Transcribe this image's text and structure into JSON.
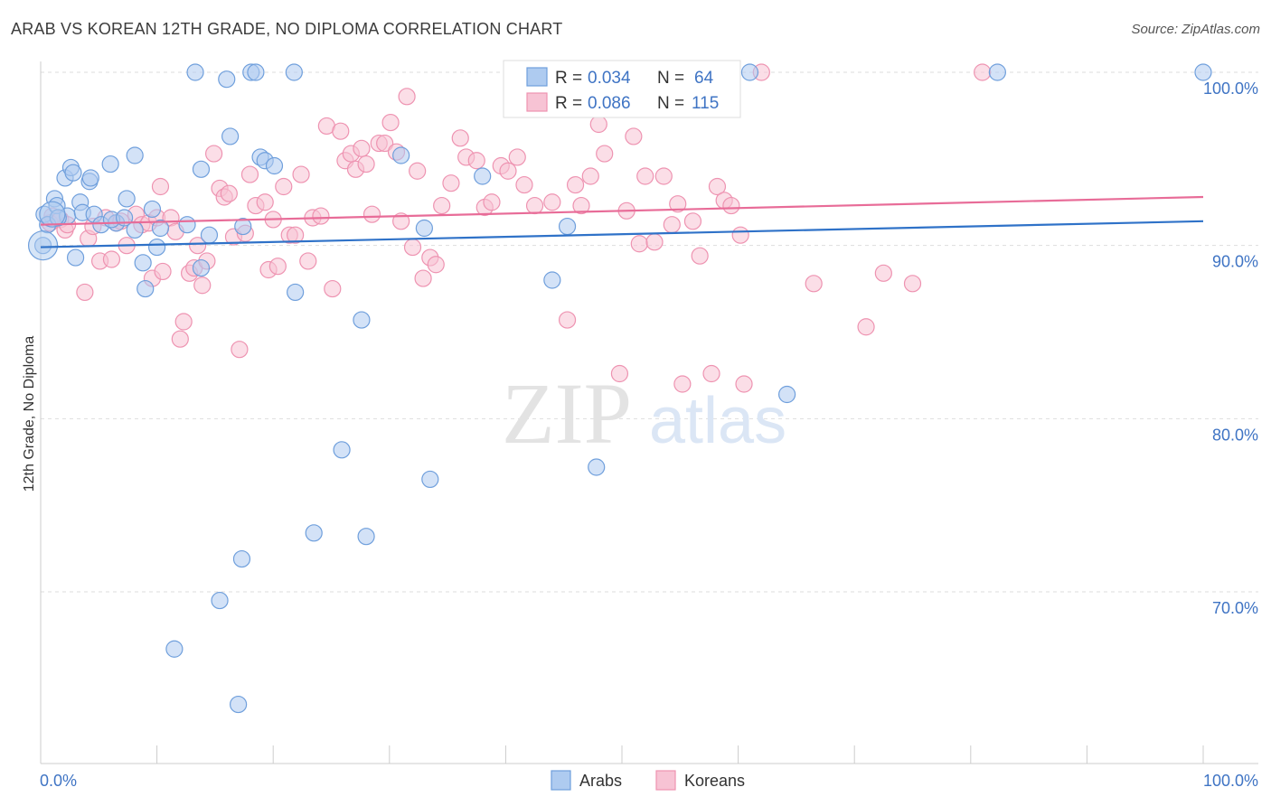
{
  "title": "ARAB VS KOREAN 12TH GRADE, NO DIPLOMA CORRELATION CHART",
  "source": "Source: ZipAtlas.com",
  "watermark": {
    "zip": "ZIP",
    "atlas": "atlas"
  },
  "colors": {
    "arabs_fill": "#aecbf0",
    "arabs_stroke": "#6f9fdc",
    "arabs_line": "#2f72c8",
    "koreans_fill": "#f7c3d4",
    "koreans_stroke": "#ee93b1",
    "koreans_line": "#e86c98",
    "tick_blue": "#3f74c4",
    "grid": "#dddddd"
  },
  "legend": {
    "rows": [
      {
        "r_label": "R =",
        "r_value": "0.034",
        "n_label": "N =",
        "n_value": "64",
        "series": "arabs"
      },
      {
        "r_label": "R =",
        "r_value": "0.086",
        "n_label": "N =",
        "n_value": "115",
        "series": "koreans"
      }
    ]
  },
  "bottom_legend": [
    {
      "label": "Arabs",
      "series": "arabs"
    },
    {
      "label": "Koreans",
      "series": "koreans"
    }
  ],
  "chart_data": {
    "type": "scatter",
    "title": "ARAB VS KOREAN 12TH GRADE, NO DIPLOMA CORRELATION CHART",
    "xlabel": "",
    "ylabel": "12th Grade, No Diploma",
    "xlim": [
      0,
      100
    ],
    "ylim": [
      60,
      100
    ],
    "x_tick_labels": [
      "0.0%",
      "100.0%"
    ],
    "y_ticks": [
      70,
      80,
      90,
      100
    ],
    "y_tick_labels": [
      "70.0%",
      "80.0%",
      "90.0%",
      "100.0%"
    ],
    "grid": true,
    "legend_position": "top-center",
    "series": [
      {
        "name": "Arabs",
        "r": 0.034,
        "n": 64,
        "trend": {
          "x": [
            0,
            100
          ],
          "y": [
            89.9,
            91.4
          ]
        },
        "points": [
          [
            0.3,
            91.8
          ],
          [
            0.2,
            90.0
          ],
          [
            0.6,
            91.2
          ],
          [
            1.2,
            92.7
          ],
          [
            1.4,
            92.3
          ],
          [
            2.1,
            93.9
          ],
          [
            2.3,
            91.7
          ],
          [
            2.6,
            94.5
          ],
          [
            2.8,
            94.2
          ],
          [
            3.4,
            92.5
          ],
          [
            3.6,
            91.9
          ],
          [
            4.2,
            93.7
          ],
          [
            4.3,
            93.9
          ],
          [
            4.6,
            91.8
          ],
          [
            5.2,
            91.2
          ],
          [
            6.0,
            94.7
          ],
          [
            6.5,
            91.3
          ],
          [
            7.4,
            92.7
          ],
          [
            8.1,
            90.9
          ],
          [
            8.1,
            95.2
          ],
          [
            8.8,
            89.0
          ],
          [
            9.0,
            87.5
          ],
          [
            9.6,
            92.1
          ],
          [
            10.0,
            89.9
          ],
          [
            10.3,
            91.0
          ],
          [
            13.3,
            100.0
          ],
          [
            13.8,
            94.4
          ],
          [
            13.8,
            88.7
          ],
          [
            14.5,
            90.6
          ],
          [
            16.0,
            99.6
          ],
          [
            16.3,
            96.3
          ],
          [
            17.4,
            91.1
          ],
          [
            18.1,
            100.0
          ],
          [
            18.5,
            100.0
          ],
          [
            18.9,
            95.1
          ],
          [
            19.3,
            94.9
          ],
          [
            20.1,
            94.6
          ],
          [
            21.8,
            100.0
          ],
          [
            21.9,
            87.3
          ],
          [
            23.5,
            73.4
          ],
          [
            25.9,
            78.2
          ],
          [
            27.6,
            85.7
          ],
          [
            28.0,
            73.2
          ],
          [
            31.0,
            95.2
          ],
          [
            33.0,
            91.0
          ],
          [
            33.5,
            76.5
          ],
          [
            38.0,
            94.0
          ],
          [
            45.3,
            91.1
          ],
          [
            44.0,
            88.0
          ],
          [
            47.8,
            77.2
          ],
          [
            50.0,
            100.0
          ],
          [
            61.0,
            100.0
          ],
          [
            64.2,
            81.4
          ],
          [
            82.3,
            100.0
          ],
          [
            100.0,
            100.0
          ],
          [
            11.5,
            66.7
          ],
          [
            15.4,
            69.5
          ],
          [
            17.0,
            63.5
          ],
          [
            17.3,
            71.9
          ],
          [
            3.0,
            89.3
          ],
          [
            6.1,
            91.5
          ],
          [
            7.2,
            91.6
          ],
          [
            12.6,
            91.2
          ],
          [
            1.5,
            91.6
          ]
        ]
      },
      {
        "name": "Koreans",
        "r": 0.086,
        "n": 115,
        "trend": {
          "x": [
            0,
            100
          ],
          "y": [
            91.2,
            92.8
          ]
        },
        "points": [
          [
            0.8,
            91.3
          ],
          [
            1.0,
            91.7
          ],
          [
            1.7,
            91.5
          ],
          [
            2.1,
            90.9
          ],
          [
            2.3,
            91.2
          ],
          [
            3.8,
            87.3
          ],
          [
            4.1,
            90.4
          ],
          [
            4.5,
            91.1
          ],
          [
            5.1,
            89.1
          ],
          [
            5.6,
            91.6
          ],
          [
            6.1,
            89.2
          ],
          [
            6.5,
            91.3
          ],
          [
            6.9,
            91.4
          ],
          [
            7.4,
            90.0
          ],
          [
            8.2,
            91.8
          ],
          [
            8.7,
            91.2
          ],
          [
            9.3,
            91.3
          ],
          [
            9.6,
            88.1
          ],
          [
            10.0,
            91.6
          ],
          [
            10.3,
            93.4
          ],
          [
            10.5,
            88.5
          ],
          [
            11.2,
            91.6
          ],
          [
            11.6,
            90.8
          ],
          [
            12.0,
            84.6
          ],
          [
            12.3,
            85.6
          ],
          [
            12.8,
            88.4
          ],
          [
            13.2,
            88.7
          ],
          [
            13.5,
            90.0
          ],
          [
            13.9,
            87.7
          ],
          [
            14.3,
            89.1
          ],
          [
            14.9,
            95.3
          ],
          [
            15.4,
            93.3
          ],
          [
            15.8,
            92.8
          ],
          [
            16.2,
            93.0
          ],
          [
            16.6,
            90.5
          ],
          [
            17.1,
            84.0
          ],
          [
            17.6,
            90.7
          ],
          [
            18.0,
            94.1
          ],
          [
            18.5,
            92.3
          ],
          [
            19.3,
            92.5
          ],
          [
            19.6,
            88.6
          ],
          [
            20.0,
            91.5
          ],
          [
            20.4,
            88.8
          ],
          [
            20.9,
            93.4
          ],
          [
            21.4,
            90.6
          ],
          [
            21.9,
            90.6
          ],
          [
            22.4,
            94.1
          ],
          [
            23.0,
            89.1
          ],
          [
            23.4,
            91.6
          ],
          [
            24.1,
            91.7
          ],
          [
            24.6,
            96.9
          ],
          [
            25.1,
            87.5
          ],
          [
            25.8,
            96.6
          ],
          [
            26.2,
            94.9
          ],
          [
            26.7,
            95.3
          ],
          [
            27.1,
            94.4
          ],
          [
            27.6,
            95.6
          ],
          [
            28.0,
            94.7
          ],
          [
            28.5,
            91.8
          ],
          [
            29.1,
            95.9
          ],
          [
            29.6,
            95.9
          ],
          [
            30.1,
            97.1
          ],
          [
            30.6,
            95.4
          ],
          [
            31.0,
            91.4
          ],
          [
            31.5,
            98.6
          ],
          [
            32.0,
            89.9
          ],
          [
            32.4,
            94.3
          ],
          [
            32.9,
            88.1
          ],
          [
            33.5,
            89.3
          ],
          [
            34.0,
            88.9
          ],
          [
            34.5,
            92.3
          ],
          [
            35.3,
            93.6
          ],
          [
            36.1,
            96.2
          ],
          [
            36.6,
            95.1
          ],
          [
            37.5,
            94.9
          ],
          [
            38.2,
            92.2
          ],
          [
            38.8,
            92.5
          ],
          [
            39.6,
            94.6
          ],
          [
            40.2,
            94.3
          ],
          [
            41.0,
            95.1
          ],
          [
            41.6,
            93.5
          ],
          [
            42.5,
            92.3
          ],
          [
            43.5,
            100.0
          ],
          [
            44.0,
            92.5
          ],
          [
            45.3,
            85.7
          ],
          [
            46.0,
            93.5
          ],
          [
            46.5,
            92.3
          ],
          [
            47.3,
            94.0
          ],
          [
            48.0,
            97.0
          ],
          [
            48.5,
            95.3
          ],
          [
            49.8,
            82.6
          ],
          [
            50.4,
            92.0
          ],
          [
            51.0,
            96.3
          ],
          [
            51.5,
            90.1
          ],
          [
            52.0,
            94.0
          ],
          [
            52.8,
            90.2
          ],
          [
            53.6,
            94.0
          ],
          [
            54.3,
            91.2
          ],
          [
            54.8,
            92.4
          ],
          [
            55.2,
            82.0
          ],
          [
            56.1,
            91.4
          ],
          [
            56.7,
            89.4
          ],
          [
            57.7,
            82.6
          ],
          [
            58.2,
            93.4
          ],
          [
            58.8,
            92.6
          ],
          [
            59.4,
            92.3
          ],
          [
            60.5,
            82.0
          ],
          [
            60.2,
            90.6
          ],
          [
            62.0,
            100.0
          ],
          [
            66.5,
            87.8
          ],
          [
            71.0,
            85.3
          ],
          [
            72.5,
            88.4
          ],
          [
            75.0,
            87.8
          ],
          [
            81.0,
            100.0
          ],
          [
            43.5,
            100.0
          ]
        ]
      }
    ]
  }
}
